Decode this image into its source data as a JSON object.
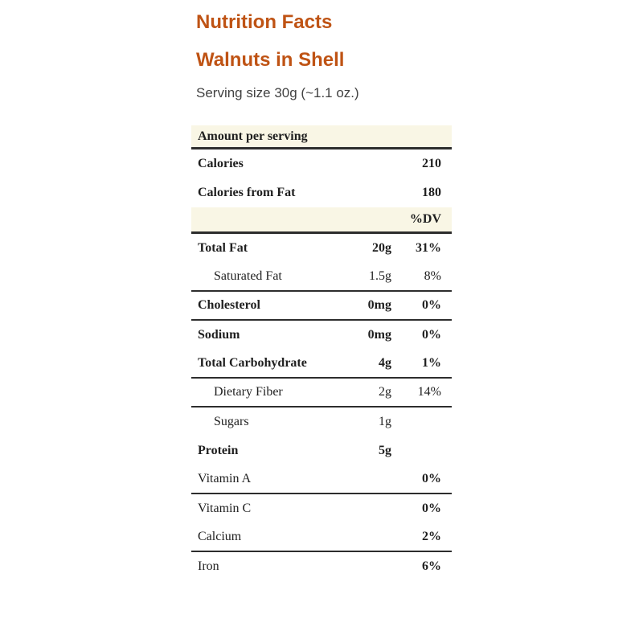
{
  "header": {
    "title": "Nutrition Facts",
    "product": "Walnuts in Shell",
    "serving_size": "Serving size 30g (~1.1 oz.)"
  },
  "table": {
    "amount_per_serving_label": "Amount per serving",
    "dv_label": "%DV",
    "rows": [
      {
        "label": "Calories",
        "amount": "",
        "pct": "210"
      },
      {
        "label": "Calories from Fat",
        "amount": "",
        "pct": "180"
      },
      {
        "label": "Total Fat",
        "amount": "20g",
        "pct": "31%"
      },
      {
        "label": "Saturated Fat",
        "amount": "1.5g",
        "pct": "8%"
      },
      {
        "label": "Cholesterol",
        "amount": "0mg",
        "pct": "0%"
      },
      {
        "label": "Sodium",
        "amount": "0mg",
        "pct": "0%"
      },
      {
        "label": "Total Carbohydrate",
        "amount": "4g",
        "pct": "1%"
      },
      {
        "label": "Dietary Fiber",
        "amount": "2g",
        "pct": "14%"
      },
      {
        "label": "Sugars",
        "amount": "1g",
        "pct": ""
      },
      {
        "label": "Protein",
        "amount": "5g",
        "pct": ""
      },
      {
        "label": "Vitamin A",
        "amount": "",
        "pct": "0%"
      },
      {
        "label": "Vitamin C",
        "amount": "",
        "pct": "0%"
      },
      {
        "label": "Calcium",
        "amount": "",
        "pct": "2%"
      },
      {
        "label": "Iron",
        "amount": "",
        "pct": "6%"
      }
    ]
  },
  "colors": {
    "accent": "#bf5314",
    "band_background": "#f9f6e5",
    "rule": "#2d2d2d",
    "text": "#1f1f1f",
    "serving_text": "#424242"
  }
}
